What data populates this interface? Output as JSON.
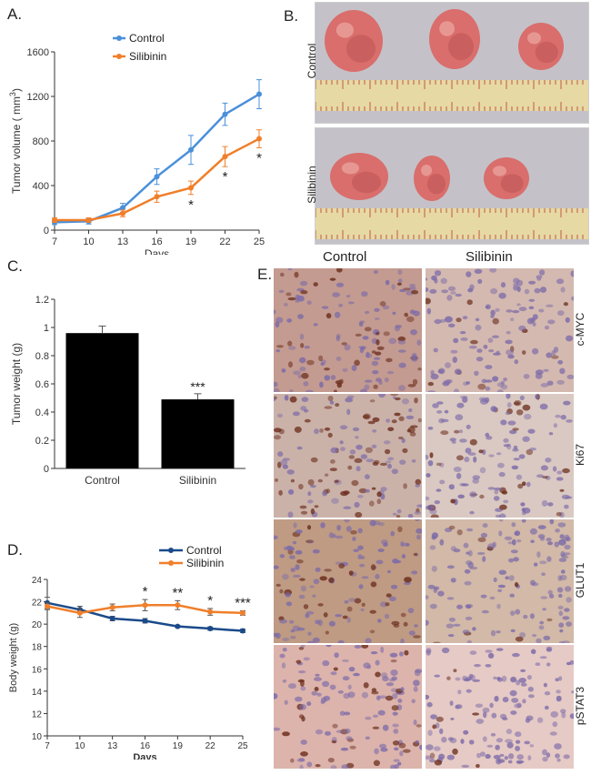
{
  "panel_letters": {
    "a": "A.",
    "b": "B.",
    "c": "C.",
    "d": "D.",
    "e": "E."
  },
  "chart_data": [
    {
      "type": "line",
      "panel": "A",
      "xlabel": "Days",
      "ylabel": "Tumor volume ( mm",
      "ylabel_sup": "3",
      "ylabel_end": ")",
      "x": [
        7,
        10,
        13,
        16,
        19,
        22,
        25
      ],
      "xticks": [
        "7",
        "10",
        "13",
        "16",
        "19",
        "22",
        "25"
      ],
      "yticks": [
        "0",
        "400",
        "800",
        "1200",
        "1600"
      ],
      "ylim": [
        0,
        1600
      ],
      "legend_position": "top-right",
      "series": [
        {
          "name": "Control",
          "color": "#4a90d9",
          "values": [
            70,
            80,
            200,
            480,
            720,
            1040,
            1220
          ],
          "errors": [
            20,
            25,
            40,
            70,
            130,
            100,
            130
          ]
        },
        {
          "name": "Silibinin",
          "color": "#f07f2a",
          "values": [
            90,
            90,
            150,
            300,
            380,
            660,
            820
          ],
          "errors": [
            20,
            20,
            30,
            50,
            60,
            90,
            80
          ]
        }
      ],
      "significance": [
        {
          "x": 19,
          "label": "*"
        },
        {
          "x": 22,
          "label": "*"
        },
        {
          "x": 25,
          "label": "*"
        }
      ]
    },
    {
      "type": "bar",
      "panel": "C",
      "ylabel": "Tumor weight (g)",
      "categories": [
        "Control",
        "Silibinin"
      ],
      "values": [
        0.96,
        0.49
      ],
      "errors": [
        0.05,
        0.04
      ],
      "yticks": [
        "0",
        "0.2",
        "0.4",
        "0.6",
        "0.8",
        "1",
        "1.2"
      ],
      "ylim": [
        0,
        1.2
      ],
      "bar_color": "#000000",
      "significance": [
        {
          "category": "Silibinin",
          "label": "***"
        }
      ]
    },
    {
      "type": "line",
      "panel": "D",
      "xlabel": "Days",
      "ylabel": "Body weight (g)",
      "x": [
        7,
        10,
        13,
        16,
        19,
        22,
        25
      ],
      "xticks": [
        "7",
        "10",
        "13",
        "16",
        "19",
        "22",
        "25"
      ],
      "yticks": [
        "10",
        "12",
        "14",
        "16",
        "18",
        "20",
        "22",
        "24"
      ],
      "ylim": [
        10,
        24
      ],
      "legend_position": "top-right",
      "series": [
        {
          "name": "Control",
          "color": "#1a4a8a",
          "values": [
            21.9,
            21.3,
            20.5,
            20.3,
            19.8,
            19.6,
            19.4
          ],
          "errors": [
            0.5,
            0.3,
            0.2,
            0.2,
            0.1,
            0.15,
            0.15
          ]
        },
        {
          "name": "Silibinin",
          "color": "#f07f2a",
          "values": [
            21.6,
            21.0,
            21.5,
            21.7,
            21.7,
            21.1,
            21.0
          ],
          "errors": [
            0.3,
            0.4,
            0.3,
            0.5,
            0.4,
            0.3,
            0.2
          ]
        }
      ],
      "significance": [
        {
          "x": 16,
          "label": "*"
        },
        {
          "x": 19,
          "label": "**"
        },
        {
          "x": 22,
          "label": "*"
        },
        {
          "x": 25,
          "label": "***"
        }
      ]
    }
  ],
  "panel_b": {
    "rows": [
      {
        "label": "Control"
      },
      {
        "label": "Silibinin"
      }
    ],
    "colors": {
      "background": "#c4c2c8",
      "tumor": "#d96e6c",
      "tumor_dark": "#b9504f",
      "ruler": "#e7d9a4",
      "ruler_mark": "#b23a2f"
    }
  },
  "panel_e": {
    "columns": [
      "Control",
      "Silibinin"
    ],
    "rows": [
      {
        "marker": "c-MYC",
        "tone": "#b88a7c"
      },
      {
        "marker": "Ki67",
        "tone": "#c2a59a"
      },
      {
        "marker": "GLUT1",
        "tone": "#b48a6e"
      },
      {
        "marker": "pSTAT3",
        "tone": "#d6a79e"
      }
    ],
    "colors": {
      "nucleus_stain": "#6b2d1c",
      "hematoxylin": "#7b6aa8"
    }
  }
}
